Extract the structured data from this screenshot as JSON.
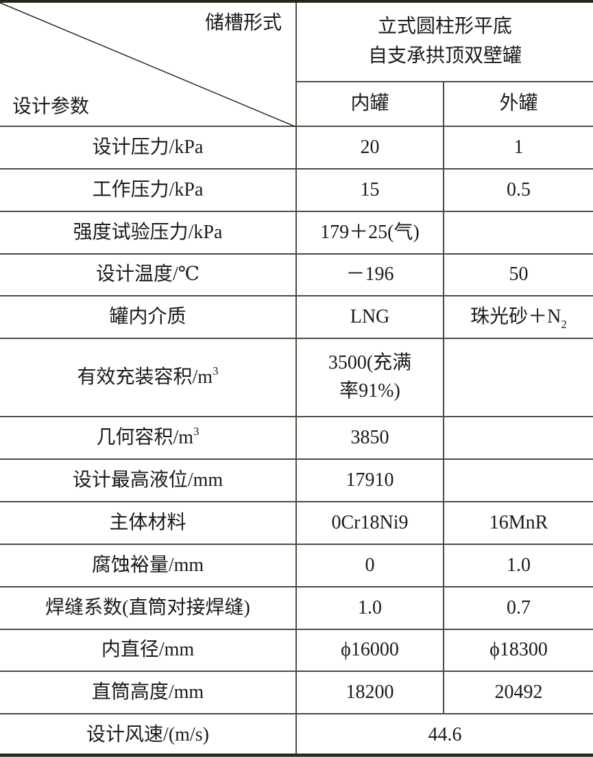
{
  "header": {
    "corner_top_right": "储槽形式",
    "corner_bottom_left": "设计参数",
    "tank_type_line1": "立式圆柱形平底",
    "tank_type_line2": "自支承拱顶双壁罐",
    "inner_tank": "内罐",
    "outer_tank": "外罐"
  },
  "rows": [
    {
      "param": "设计压力/kPa",
      "inner": "20",
      "outer": "1"
    },
    {
      "param": "工作压力/kPa",
      "inner": "15",
      "outer": "0.5"
    },
    {
      "param": "强度试验压力/kPa",
      "inner": "179＋25(气)",
      "outer": ""
    },
    {
      "param": "设计温度/℃",
      "inner": "－196",
      "outer": "50"
    },
    {
      "param": "罐内介质",
      "inner": "LNG",
      "outer": "珠光砂＋N",
      "outer_sub": "2"
    },
    {
      "param": "有效充装容积/m",
      "param_sup": "3",
      "inner": "3500(充满",
      "inner_line2": "率91%)",
      "outer": ""
    },
    {
      "param": "几何容积/m",
      "param_sup": "3",
      "inner": "3850",
      "outer": ""
    },
    {
      "param": "设计最高液位/mm",
      "inner": "17910",
      "outer": ""
    },
    {
      "param": "主体材料",
      "inner": "0Cr18Ni9",
      "outer": "16MnR"
    },
    {
      "param": "腐蚀裕量/mm",
      "inner": "0",
      "outer": "1.0"
    },
    {
      "param": "焊缝系数(直筒对接焊缝)",
      "inner": "1.0",
      "outer": "0.7"
    },
    {
      "param": "内直径/mm",
      "inner": "ϕ16000",
      "outer": "ϕ18300"
    },
    {
      "param": "直筒高度/mm",
      "inner": "18200",
      "outer": "20492"
    },
    {
      "param": "设计风速/(m/s)",
      "inner": "44.6",
      "merged": true
    }
  ]
}
